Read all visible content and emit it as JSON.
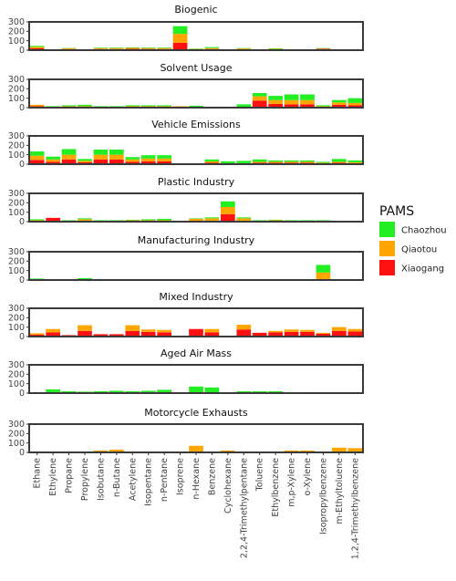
{
  "chart_data": {
    "type": "bar",
    "stacked": true,
    "categories": [
      "Ethane",
      "Ethylene",
      "Propane",
      "Propylene",
      "Isobutane",
      "n-Butane",
      "Acetylene",
      "Isopentane",
      "n-Pentane",
      "Isoprene",
      "n-Hexane",
      "Benzene",
      "Cyclohexane",
      "2,2,4-Trimethylpentane",
      "Toluene",
      "Ethylbenzene",
      "m,p-Xylene",
      "o-Xylene",
      "Isopropylbenzene",
      "m-Ethyltoluene",
      "1,2,4-Trimethylbenzene"
    ],
    "yticks": [
      0,
      100,
      200,
      300
    ],
    "ylim": [
      0,
      300
    ],
    "legend": {
      "title": "PAMS",
      "entries": [
        {
          "name": "Chaozhou",
          "color": "#22ee22"
        },
        {
          "name": "Qiaotou",
          "color": "#ffa500"
        },
        {
          "name": "Xiaogang",
          "color": "#ff1111"
        }
      ],
      "placement": "right"
    },
    "panels": [
      {
        "title": "Biogenic",
        "series": [
          {
            "name": "Xiaogang",
            "values": [
              20,
              2,
              12,
              5,
              12,
              12,
              14,
              13,
              12,
              78,
              8,
              12,
              3,
              8,
              4,
              8,
              2,
              2,
              14,
              4,
              3
            ]
          },
          {
            "name": "Qiaotou",
            "values": [
              15,
              0,
              8,
              3,
              10,
              10,
              10,
              9,
              10,
              95,
              5,
              10,
              0,
              10,
              2,
              6,
              0,
              0,
              4,
              2,
              2
            ]
          },
          {
            "name": "Chaozhou",
            "values": [
              10,
              0,
              3,
              2,
              5,
              6,
              5,
              6,
              6,
              82,
              4,
              10,
              0,
              4,
              2,
              6,
              2,
              2,
              4,
              4,
              4
            ]
          }
        ]
      },
      {
        "title": "Solvent Usage",
        "series": [
          {
            "name": "Xiaogang",
            "values": [
              15,
              0,
              5,
              5,
              0,
              0,
              5,
              5,
              5,
              5,
              0,
              5,
              0,
              0,
              75,
              40,
              35,
              35,
              5,
              30,
              25
            ]
          },
          {
            "name": "Qiaotou",
            "values": [
              15,
              0,
              10,
              10,
              5,
              5,
              10,
              10,
              10,
              10,
              5,
              5,
              0,
              0,
              45,
              40,
              45,
              45,
              10,
              25,
              25
            ]
          },
          {
            "name": "Chaozhou",
            "values": [
              0,
              15,
              10,
              15,
              10,
              10,
              10,
              10,
              10,
              0,
              15,
              0,
              0,
              35,
              35,
              45,
              60,
              60,
              10,
              25,
              50
            ]
          }
        ]
      },
      {
        "title": "Vehicle Emissions",
        "series": [
          {
            "name": "Xiaogang",
            "values": [
              45,
              25,
              50,
              20,
              50,
              50,
              25,
              30,
              30,
              0,
              0,
              15,
              0,
              5,
              15,
              15,
              15,
              15,
              10,
              15,
              10
            ]
          },
          {
            "name": "Qiaotou",
            "values": [
              45,
              25,
              50,
              15,
              50,
              50,
              25,
              30,
              30,
              0,
              0,
              15,
              0,
              5,
              10,
              10,
              10,
              10,
              5,
              10,
              10
            ]
          },
          {
            "name": "Chaozhou",
            "values": [
              45,
              30,
              60,
              20,
              55,
              55,
              25,
              35,
              35,
              0,
              0,
              20,
              30,
              25,
              25,
              15,
              15,
              15,
              10,
              30,
              20
            ]
          }
        ]
      },
      {
        "title": "Plastic Industry",
        "series": [
          {
            "name": "Xiaogang",
            "values": [
              5,
              40,
              5,
              10,
              5,
              5,
              5,
              5,
              5,
              0,
              5,
              10,
              80,
              10,
              5,
              5,
              5,
              5,
              5,
              0,
              0
            ]
          },
          {
            "name": "Qiaotou",
            "values": [
              10,
              0,
              5,
              15,
              5,
              5,
              10,
              10,
              10,
              0,
              25,
              25,
              75,
              25,
              5,
              10,
              5,
              5,
              5,
              0,
              0
            ]
          },
          {
            "name": "Chaozhou",
            "values": [
              10,
              0,
              5,
              10,
              5,
              5,
              5,
              10,
              15,
              0,
              5,
              10,
              60,
              10,
              5,
              5,
              5,
              5,
              5,
              0,
              0
            ]
          }
        ]
      },
      {
        "title": "Manufacturing Industry",
        "series": [
          {
            "name": "Xiaogang",
            "values": [
              0,
              0,
              0,
              0,
              0,
              0,
              0,
              0,
              0,
              0,
              0,
              0,
              0,
              0,
              0,
              0,
              0,
              0,
              0,
              0,
              0
            ]
          },
          {
            "name": "Qiaotou",
            "values": [
              0,
              0,
              0,
              0,
              0,
              0,
              0,
              0,
              0,
              0,
              0,
              0,
              0,
              0,
              0,
              0,
              0,
              0,
              80,
              0,
              0
            ]
          },
          {
            "name": "Chaozhou",
            "values": [
              15,
              0,
              0,
              20,
              0,
              0,
              0,
              0,
              0,
              0,
              0,
              0,
              0,
              0,
              0,
              0,
              0,
              0,
              80,
              0,
              0
            ]
          }
        ]
      },
      {
        "title": "Mixed Industry",
        "series": [
          {
            "name": "Xiaogang",
            "values": [
              20,
              45,
              15,
              60,
              25,
              25,
              60,
              50,
              45,
              0,
              80,
              45,
              0,
              75,
              40,
              45,
              50,
              50,
              30,
              60,
              55
            ]
          },
          {
            "name": "Qiaotou",
            "values": [
              15,
              35,
              0,
              60,
              0,
              0,
              60,
              25,
              25,
              0,
              0,
              35,
              0,
              50,
              0,
              15,
              25,
              20,
              10,
              40,
              25
            ]
          },
          {
            "name": "Chaozhou",
            "values": [
              0,
              0,
              0,
              0,
              0,
              0,
              0,
              0,
              0,
              0,
              0,
              0,
              0,
              0,
              0,
              0,
              0,
              0,
              0,
              0,
              0
            ]
          }
        ]
      },
      {
        "title": "Aged Air Mass",
        "series": [
          {
            "name": "Xiaogang",
            "values": [
              0,
              0,
              0,
              0,
              0,
              0,
              0,
              0,
              0,
              0,
              0,
              0,
              0,
              0,
              0,
              0,
              0,
              0,
              0,
              0,
              0
            ]
          },
          {
            "name": "Qiaotou",
            "values": [
              0,
              0,
              0,
              0,
              0,
              0,
              0,
              0,
              0,
              0,
              0,
              0,
              0,
              0,
              0,
              0,
              0,
              0,
              0,
              0,
              0
            ]
          },
          {
            "name": "Chaozhou",
            "values": [
              5,
              40,
              20,
              15,
              20,
              25,
              20,
              25,
              35,
              0,
              70,
              60,
              0,
              20,
              20,
              20,
              0,
              10,
              0,
              0,
              0
            ]
          }
        ]
      },
      {
        "title": "Motorcycle Exhausts",
        "series": [
          {
            "name": "Xiaogang",
            "values": [
              0,
              0,
              0,
              0,
              0,
              0,
              0,
              0,
              0,
              0,
              0,
              0,
              0,
              0,
              0,
              0,
              0,
              0,
              0,
              0,
              0
            ]
          },
          {
            "name": "Qiaotou",
            "values": [
              10,
              5,
              10,
              5,
              20,
              30,
              5,
              5,
              5,
              0,
              70,
              5,
              20,
              0,
              0,
              5,
              20,
              20,
              5,
              50,
              45
            ]
          },
          {
            "name": "Chaozhou",
            "values": [
              0,
              0,
              0,
              0,
              0,
              0,
              0,
              0,
              0,
              0,
              0,
              0,
              0,
              0,
              0,
              0,
              0,
              0,
              0,
              0,
              0
            ]
          }
        ]
      }
    ]
  }
}
